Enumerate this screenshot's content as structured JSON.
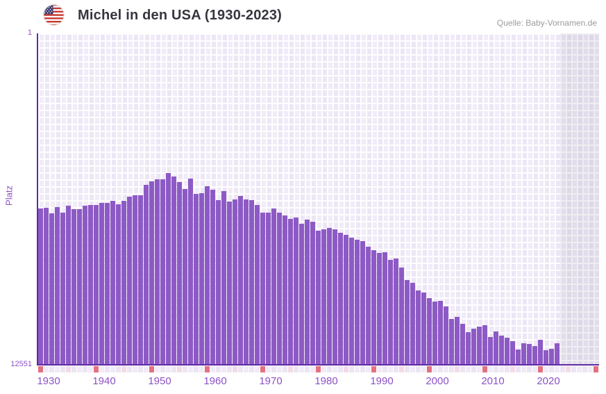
{
  "header": {
    "title": "Michel in den USA (1930-2023)",
    "flag_icon": "us-flag-round-icon",
    "source": "Quelle: Baby-Vornamen.de"
  },
  "chart_data": {
    "type": "bar",
    "title": "Michel in den USA (1930-2023)",
    "xlabel": "",
    "ylabel": "Platz",
    "y_axis": {
      "top_label": "1",
      "bottom_label": "12551",
      "min": 1,
      "max": 12551,
      "inverted": true,
      "scale": "linear"
    },
    "x_axis": {
      "tick_labels": [
        "1930",
        "1940",
        "1950",
        "1960",
        "1970",
        "1980",
        "1990",
        "2000",
        "2010",
        "2020"
      ],
      "strip_year_start": 1930,
      "strip_year_end": 2030,
      "data_year_start": 1930,
      "data_year_end": 2023
    },
    "grid": true,
    "legend": "none",
    "categories": [
      1930,
      1931,
      1932,
      1933,
      1934,
      1935,
      1936,
      1937,
      1938,
      1939,
      1940,
      1941,
      1942,
      1943,
      1944,
      1945,
      1946,
      1947,
      1948,
      1949,
      1950,
      1951,
      1952,
      1953,
      1954,
      1955,
      1956,
      1957,
      1958,
      1959,
      1960,
      1961,
      1962,
      1963,
      1964,
      1965,
      1966,
      1967,
      1968,
      1969,
      1970,
      1971,
      1972,
      1973,
      1974,
      1975,
      1976,
      1977,
      1978,
      1979,
      1980,
      1981,
      1982,
      1983,
      1984,
      1985,
      1986,
      1987,
      1988,
      1989,
      1990,
      1991,
      1992,
      1993,
      1994,
      1995,
      1996,
      1997,
      1998,
      1999,
      2000,
      2001,
      2002,
      2003,
      2004,
      2005,
      2006,
      2007,
      2008,
      2009,
      2010,
      2011,
      2012,
      2013,
      2014,
      2015,
      2016,
      2017,
      2018,
      2019,
      2020,
      2021,
      2022,
      2023
    ],
    "values": [
      6645,
      6619,
      6830,
      6592,
      6803,
      6540,
      6671,
      6671,
      6540,
      6513,
      6513,
      6434,
      6434,
      6355,
      6487,
      6355,
      6197,
      6144,
      6144,
      5749,
      5617,
      5538,
      5538,
      5301,
      5432,
      5643,
      5907,
      5511,
      6091,
      6065,
      5801,
      5933,
      6329,
      5986,
      6381,
      6302,
      6171,
      6302,
      6329,
      6513,
      6803,
      6803,
      6645,
      6803,
      6909,
      7041,
      6988,
      7225,
      7067,
      7146,
      7489,
      7436,
      7383,
      7436,
      7568,
      7647,
      7753,
      7832,
      7885,
      8095,
      8227,
      8333,
      8306,
      8596,
      8543,
      8886,
      9361,
      9466,
      9756,
      9835,
      10046,
      10178,
      10152,
      10363,
      10837,
      10758,
      11022,
      11338,
      11207,
      11128,
      11075,
      11523,
      11312,
      11470,
      11549,
      11681,
      11997,
      11760,
      11786,
      11865,
      11628,
      12024,
      11971,
      11760
    ],
    "colors": {
      "bar": "#8d5ac5",
      "axis_line": "#5e2ba6",
      "axis_text": "#8d51c6",
      "plot_background": "#f1ecf8",
      "future_zone_tint": "#e8e3f0",
      "strip_decade": "#e4717e",
      "strip_half_decade": "#f3dbe6",
      "strip_odd_year": "#f1ebf7",
      "strip_even_year": "#ece5f3",
      "title_text": "#36363f",
      "source_text": "#9b9b9b"
    }
  }
}
